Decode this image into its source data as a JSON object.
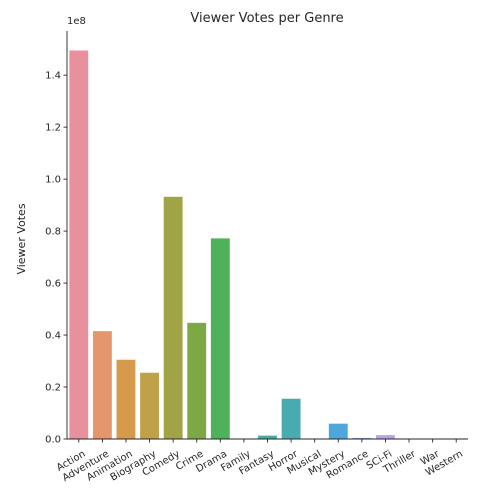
{
  "chart_data": {
    "type": "bar",
    "title": "Viewer Votes per Genre",
    "xlabel": "",
    "ylabel": "Viewer Votes",
    "offset_text": "1e8",
    "ylim": [
      0,
      157000000
    ],
    "yticks": [
      0,
      20000000,
      40000000,
      60000000,
      80000000,
      100000000,
      120000000,
      140000000
    ],
    "ytick_labels": [
      "0.0",
      "0.2",
      "0.4",
      "0.6",
      "0.8",
      "1.0",
      "1.2",
      "1.4"
    ],
    "categories": [
      "Action",
      "Adventure",
      "Animation",
      "Biography",
      "Comedy",
      "Crime",
      "Drama",
      "Family",
      "Fantasy",
      "Horror",
      "Musical",
      "Mystery",
      "Romance",
      "SCi-Fi",
      "Thriller",
      "War",
      "Western"
    ],
    "values": [
      149500000,
      41500000,
      30500000,
      25500000,
      93200000,
      44700000,
      77200000,
      0,
      1300000,
      15500000,
      0,
      5900000,
      400000,
      1500000,
      0,
      0,
      0
    ],
    "colors": [
      "#e8909c",
      "#e5966d",
      "#d59a4a",
      "#bfa14a",
      "#a0a445",
      "#7ca944",
      "#4db25a",
      "#49b18c",
      "#47ae9f",
      "#49aab0",
      "#4aa8c2",
      "#4da6dc",
      "#8fa4e4",
      "#bca3e6",
      "#d99ce3",
      "#e497c8",
      "#e595ad"
    ],
    "grid": false,
    "legend": "none"
  }
}
